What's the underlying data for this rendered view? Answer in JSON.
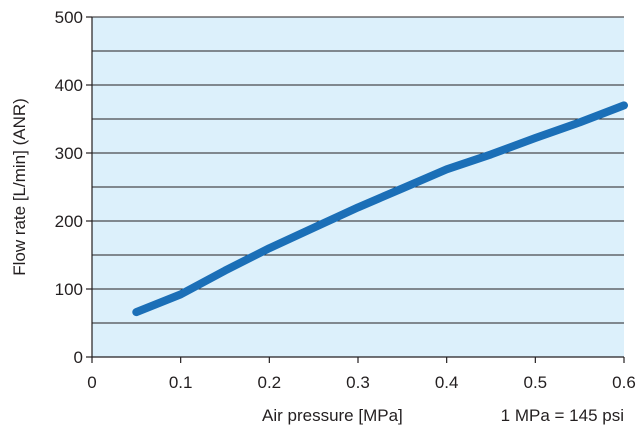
{
  "chart_data": {
    "type": "line",
    "title": "",
    "xlabel": "Air pressure [MPa]",
    "xlabel_note": "1 MPa = 145 psi",
    "ylabel": "Flow rate [L/min] (ANR)",
    "xlim": [
      0,
      0.6
    ],
    "ylim": [
      0,
      500
    ],
    "x_ticks": [
      "0",
      "0.1",
      "0.2",
      "0.3",
      "0.4",
      "0.5",
      "0.6"
    ],
    "y_ticks": [
      "0",
      "100",
      "200",
      "300",
      "400",
      "500"
    ],
    "grid": true,
    "legend": "none",
    "colors": {
      "plot_background": "#dcf0fb",
      "gridline": "#231f20",
      "series_line": "#1b6fb7"
    },
    "series": [
      {
        "x": [
          0.05,
          0.1,
          0.15,
          0.2,
          0.25,
          0.3,
          0.35,
          0.4,
          0.45,
          0.5,
          0.55,
          0.6
        ],
        "values": [
          66,
          92,
          127,
          160,
          190,
          220,
          248,
          276,
          298,
          322,
          345,
          370
        ]
      }
    ]
  }
}
